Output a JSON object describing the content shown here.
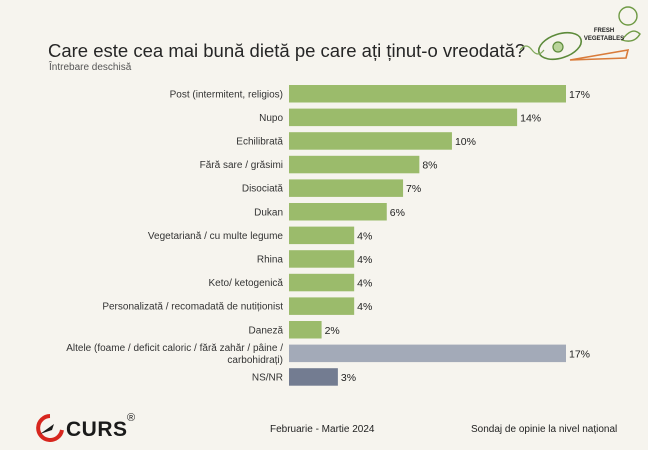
{
  "header": {
    "title": "Care este cea mai bună dietă pe care ați ținut-o vreodată?",
    "subtitle": "Întrebare deschisă"
  },
  "decor": {
    "label_line1": "FRESH",
    "label_line2": "VEGETABLES"
  },
  "footer": {
    "date": "Februarie - Martie 2024",
    "source": "Sondaj de opinie la nivel național",
    "logo_text": "CURS",
    "logo_mark": "®"
  },
  "colors": {
    "green": "#9bbb6b",
    "gray": "#a3aab8",
    "slate": "#737c91"
  },
  "chart_data": {
    "type": "bar",
    "orientation": "horizontal",
    "xlim": [
      0,
      17
    ],
    "categories": [
      [
        "Post (intermitent, religios)"
      ],
      [
        "Nupo"
      ],
      [
        "Echilibrată"
      ],
      [
        "Fără sare / grăsimi"
      ],
      [
        "Disociată"
      ],
      [
        "Dukan"
      ],
      [
        "Vegetariană / cu multe legume"
      ],
      [
        "Rhina"
      ],
      [
        "Keto/ ketogenică"
      ],
      [
        "Personalizată / recomadată de nutiționist"
      ],
      [
        "Daneză"
      ],
      [
        "Altele (foame / deficit caloric / fără zahăr / pâine /",
        "carbohidrați)"
      ],
      [
        "NS/NR"
      ]
    ],
    "values": [
      17,
      14,
      10,
      8,
      7,
      6,
      4,
      4,
      4,
      4,
      2,
      17,
      3
    ],
    "value_labels": [
      "17%",
      "14%",
      "10%",
      "8%",
      "7%",
      "6%",
      "4%",
      "4%",
      "4%",
      "4%",
      "2%",
      "17%",
      "3%"
    ],
    "bar_colors": [
      "green",
      "green",
      "green",
      "green",
      "green",
      "green",
      "green",
      "green",
      "green",
      "green",
      "green",
      "gray",
      "slate"
    ]
  }
}
